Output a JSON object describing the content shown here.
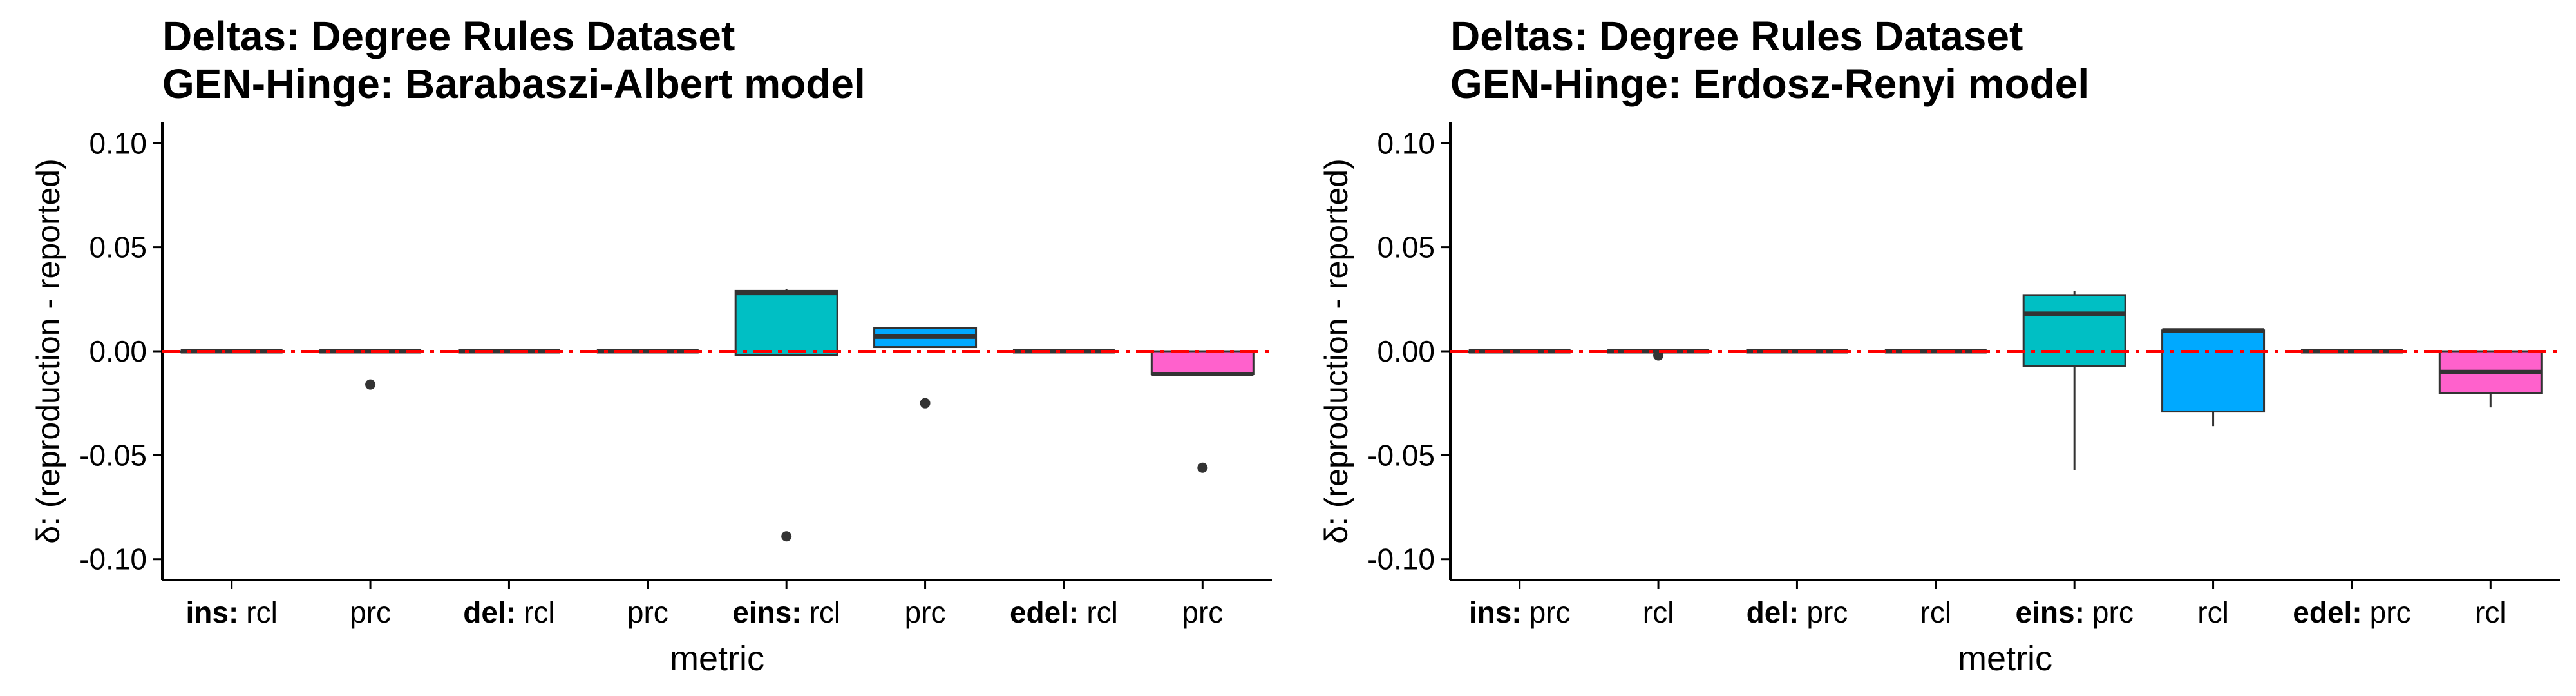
{
  "charts": [
    {
      "title": "Deltas: Degree Rules Dataset",
      "subtitle": "GEN-Hinge: Barabaszi-Albert model",
      "xlabel": "metric",
      "ylabel": "δ: (reproduction - reported)",
      "yticks": [
        "0.10",
        "0.05",
        "0.00",
        "-0.05",
        "-0.10"
      ]
    },
    {
      "title": "Deltas: Degree Rules Dataset",
      "subtitle": "GEN-Hinge: Erdosz-Renyi model",
      "xlabel": "metric",
      "ylabel": "δ: (reproduction - reported)",
      "yticks": [
        "0.10",
        "0.05",
        "0.00",
        "-0.05",
        "-0.10"
      ]
    }
  ],
  "chart_data": [
    {
      "type": "box",
      "title": "Deltas: Degree Rules Dataset",
      "subtitle": "GEN-Hinge: Barabaszi-Albert model",
      "xlabel": "metric",
      "ylabel": "δ: (reproduction - reported)",
      "ylim": [
        -0.11,
        0.11
      ],
      "yticks": [
        0.1,
        0.05,
        0.0,
        -0.05,
        -0.1
      ],
      "reference_line": {
        "y": 0.0,
        "style": "dashed",
        "color": "#ff0000"
      },
      "grid": false,
      "categories": [
        {
          "group": "ins:",
          "metric": "rcl",
          "color": "#f8766d",
          "q1": 0.0,
          "median": 0.0,
          "q3": 0.0,
          "whisker_low": 0.0,
          "whisker_high": 0.0,
          "outliers": []
        },
        {
          "group": "",
          "metric": "prc",
          "color": "#f8766d",
          "q1": 0.0,
          "median": 0.0,
          "q3": 0.0,
          "whisker_low": 0.0,
          "whisker_high": 0.0,
          "outliers": [
            -0.016
          ]
        },
        {
          "group": "del:",
          "metric": "rcl",
          "color": "#7cae00",
          "q1": 0.0,
          "median": 0.0,
          "q3": 0.0,
          "whisker_low": 0.0,
          "whisker_high": 0.0,
          "outliers": []
        },
        {
          "group": "",
          "metric": "prc",
          "color": "#7cae00",
          "q1": 0.0,
          "median": 0.0,
          "q3": 0.0,
          "whisker_low": 0.0,
          "whisker_high": 0.0,
          "outliers": []
        },
        {
          "group": "eins:",
          "metric": "rcl",
          "color": "#00bfc4",
          "q1": -0.002,
          "median": 0.028,
          "q3": 0.029,
          "whisker_low": -0.002,
          "whisker_high": 0.03,
          "outliers": [
            -0.089
          ]
        },
        {
          "group": "",
          "metric": "prc",
          "color": "#00a9ff",
          "q1": 0.002,
          "median": 0.007,
          "q3": 0.011,
          "whisker_low": 0.002,
          "whisker_high": 0.011,
          "outliers": [
            -0.025
          ]
        },
        {
          "group": "edel:",
          "metric": "rcl",
          "color": "#c77cff",
          "q1": 0.0,
          "median": 0.0,
          "q3": 0.0,
          "whisker_low": 0.0,
          "whisker_high": 0.0,
          "outliers": []
        },
        {
          "group": "",
          "metric": "prc",
          "color": "#ff61cc",
          "q1": -0.011,
          "median": -0.011,
          "q3": 0.0,
          "whisker_low": -0.011,
          "whisker_high": 0.0,
          "outliers": [
            -0.056
          ]
        }
      ]
    },
    {
      "type": "box",
      "title": "Deltas: Degree Rules Dataset",
      "subtitle": "GEN-Hinge: Erdosz-Renyi model",
      "xlabel": "metric",
      "ylabel": "δ: (reproduction - reported)",
      "ylim": [
        -0.11,
        0.11
      ],
      "yticks": [
        0.1,
        0.05,
        0.0,
        -0.05,
        -0.1
      ],
      "reference_line": {
        "y": 0.0,
        "style": "dashed",
        "color": "#ff0000"
      },
      "grid": false,
      "categories": [
        {
          "group": "ins:",
          "metric": "prc",
          "color": "#f8766d",
          "q1": 0.0,
          "median": 0.0,
          "q3": 0.0,
          "whisker_low": 0.0,
          "whisker_high": 0.0,
          "outliers": []
        },
        {
          "group": "",
          "metric": "rcl",
          "color": "#f8766d",
          "q1": 0.0,
          "median": 0.0,
          "q3": 0.0,
          "whisker_low": 0.0,
          "whisker_high": 0.0,
          "outliers": [
            -0.002
          ]
        },
        {
          "group": "del:",
          "metric": "prc",
          "color": "#7cae00",
          "q1": 0.0,
          "median": 0.0,
          "q3": 0.0,
          "whisker_low": 0.0,
          "whisker_high": 0.0,
          "outliers": []
        },
        {
          "group": "",
          "metric": "rcl",
          "color": "#7cae00",
          "q1": 0.0,
          "median": 0.0,
          "q3": 0.0,
          "whisker_low": 0.0,
          "whisker_high": 0.0,
          "outliers": []
        },
        {
          "group": "eins:",
          "metric": "prc",
          "color": "#00bfc4",
          "q1": -0.007,
          "median": 0.018,
          "q3": 0.027,
          "whisker_low": -0.057,
          "whisker_high": 0.029,
          "outliers": []
        },
        {
          "group": "",
          "metric": "rcl",
          "color": "#00a9ff",
          "q1": -0.029,
          "median": 0.01,
          "q3": 0.01,
          "whisker_low": -0.036,
          "whisker_high": 0.011,
          "outliers": []
        },
        {
          "group": "edel:",
          "metric": "prc",
          "color": "#c77cff",
          "q1": 0.0,
          "median": 0.0,
          "q3": 0.0,
          "whisker_low": 0.0,
          "whisker_high": 0.0,
          "outliers": []
        },
        {
          "group": "",
          "metric": "rcl",
          "color": "#ff61cc",
          "q1": -0.02,
          "median": -0.01,
          "q3": 0.0,
          "whisker_low": -0.027,
          "whisker_high": 0.0,
          "outliers": []
        }
      ]
    }
  ]
}
